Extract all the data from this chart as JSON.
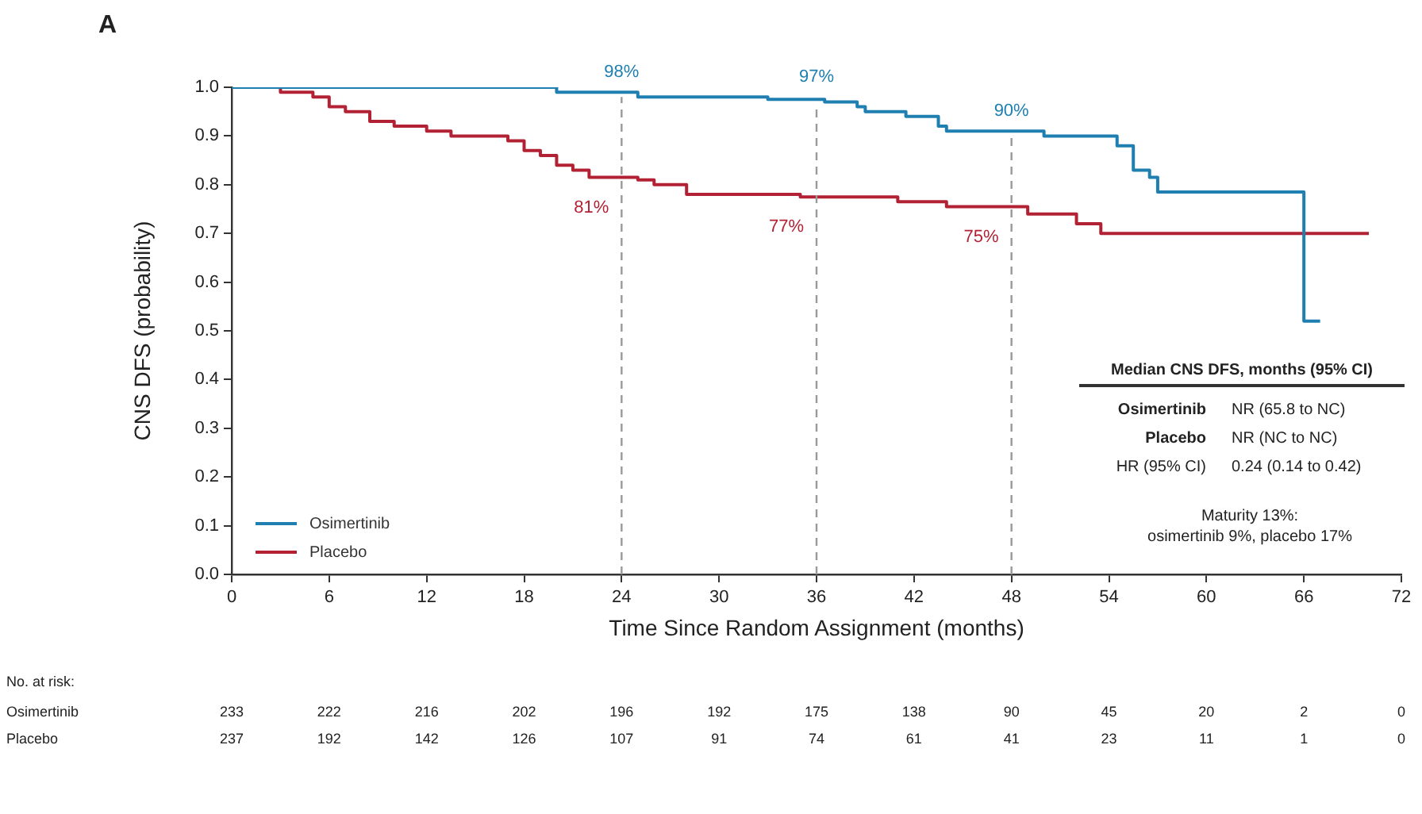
{
  "chart_data": {
    "type": "step",
    "title": "A",
    "xlabel": "Time Since Random Assignment (months)",
    "ylabel": "CNS DFS (probability)",
    "xlim": [
      0,
      72
    ],
    "xticks": [
      0,
      6,
      12,
      18,
      24,
      30,
      36,
      42,
      48,
      54,
      60,
      66,
      72
    ],
    "ylim": [
      0,
      1
    ],
    "yticks": [
      {
        "value": 0,
        "label": "0.0"
      },
      0.1,
      0.2,
      0.3,
      0.4,
      0.5,
      0.6,
      0.7,
      0.8,
      0.9,
      {
        "value": 1,
        "label": "1.0"
      }
    ],
    "grid": false,
    "legend": "bottom left",
    "line_style": "solid",
    "series": [
      {
        "name": "Osimertinib",
        "color": "#1f7fb0",
        "x": [
          0,
          20,
          25,
          33,
          36.5,
          38.5,
          39,
          41.5,
          43.5,
          44,
          50,
          54.5,
          55.5,
          56.5,
          57,
          66,
          67
        ],
        "values": [
          1,
          0.99,
          0.98,
          0.975,
          0.97,
          0.96,
          0.95,
          0.94,
          0.92,
          0.91,
          0.9,
          0.88,
          0.83,
          0.815,
          0.785,
          0.52,
          0.52
        ]
      },
      {
        "name": "Placebo",
        "color": "#b22234",
        "x": [
          0,
          3,
          5,
          6,
          7,
          8.5,
          10,
          12,
          13.5,
          17,
          18,
          19,
          20,
          21,
          22,
          25,
          26,
          28,
          35,
          41,
          44,
          49,
          52,
          53.5,
          70
        ],
        "values": [
          1,
          0.99,
          0.98,
          0.96,
          0.95,
          0.93,
          0.92,
          0.91,
          0.9,
          0.89,
          0.87,
          0.86,
          0.84,
          0.83,
          0.815,
          0.81,
          0.8,
          0.78,
          0.775,
          0.765,
          0.755,
          0.74,
          0.72,
          0.7,
          0.7
        ]
      }
    ],
    "ref_lines": [
      {
        "axis": "x",
        "value": 24,
        "color": "#999999",
        "line_style": "dashed"
      },
      {
        "axis": "x",
        "value": 36,
        "color": "#999999",
        "line_style": "dashed"
      },
      {
        "axis": "x",
        "value": 48,
        "color": "#999999",
        "line_style": "dashed"
      }
    ],
    "annotations": [
      {
        "text": "98%",
        "x": 24,
        "y": 0.98
      },
      {
        "text": "97%",
        "x": 36,
        "y": 0.97
      },
      {
        "text": "90%",
        "x": 48,
        "y": 0.9
      },
      {
        "text": "81%",
        "x": 24,
        "y": 0.81
      },
      {
        "text": "77%",
        "x": 36,
        "y": 0.77
      },
      {
        "text": "75%",
        "x": 48,
        "y": 0.75
      },
      "Median CNS DFS, months (95% CI)",
      "Osimertinib",
      "NR (65.8 to NC)",
      "Placebo",
      "NR (NC to NC)",
      "HR (95% CI)",
      "0.24 (0.14 to 0.42)",
      "Maturity 13%:",
      "osimertinib 9%, placebo 17%",
      "No. at risk:",
      "Osimertinib",
      "233",
      "222",
      "216",
      "202",
      "196",
      "192",
      "175",
      "138",
      "90",
      "45",
      "20",
      "2",
      "0",
      "Placebo",
      "237",
      "192",
      "142",
      "126",
      "107",
      "91",
      "74",
      "61",
      "41",
      "23",
      "11",
      "1",
      "0"
    ]
  }
}
